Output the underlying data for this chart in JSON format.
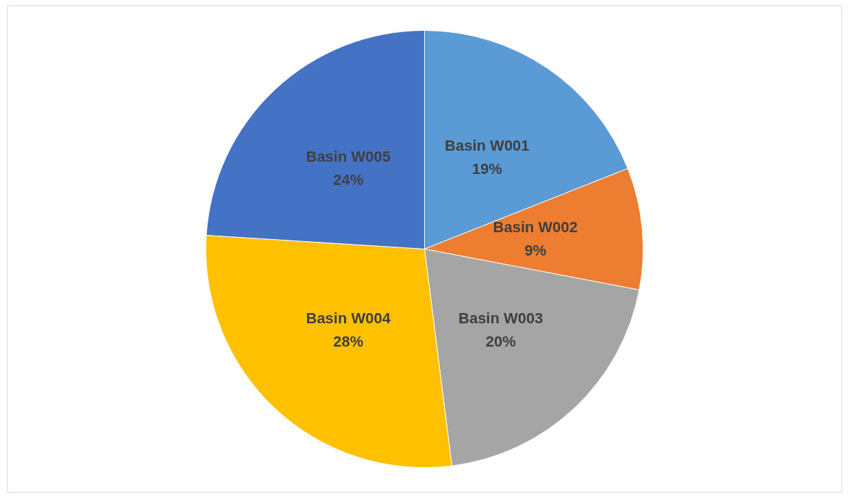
{
  "chart_data": {
    "type": "pie",
    "categories": [
      "Basin W001",
      "Basin W002",
      "Basin W003",
      "Basin W004",
      "Basin W005"
    ],
    "values": [
      19,
      9,
      20,
      28,
      24
    ],
    "value_labels": [
      "19%",
      "9%",
      "20%",
      "28%",
      "24%"
    ],
    "colors": [
      "#5b9bd5",
      "#ed7d31",
      "#a5a5a5",
      "#ffc000",
      "#4472c4"
    ],
    "legend": false
  }
}
